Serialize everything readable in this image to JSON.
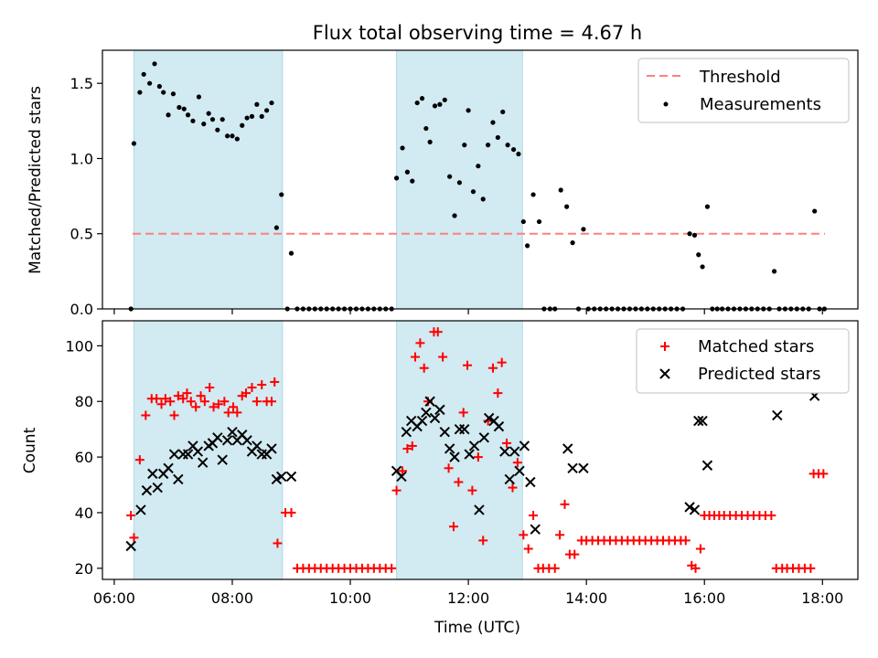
{
  "title": "Flux total observing time = 4.67 h",
  "xlabel": "Time (UTC)",
  "x_ticks": [
    "06:00",
    "08:00",
    "10:00",
    "12:00",
    "14:00",
    "16:00",
    "18:00"
  ],
  "colors": {
    "shade": "#add8e6",
    "threshold": "#ff7f7f",
    "measurement": "#000000",
    "matched": "#ff0000",
    "predicted": "#000000"
  },
  "chart_data": [
    {
      "type": "scatter",
      "ylabel": "Matched/Predicted stars",
      "xlim": [
        "05:48",
        "18:36"
      ],
      "ylim": [
        0,
        1.72
      ],
      "y_ticks": [
        "0.0",
        "0.5",
        "1.0",
        "1.5"
      ],
      "shaded_intervals": [
        [
          "06:20",
          "08:51"
        ],
        [
          "10:47",
          "12:55"
        ]
      ],
      "threshold": 0.5,
      "legend": {
        "placement": "top-right",
        "threshold_label": "Threshold",
        "measurements_label": "Measurements"
      },
      "measurements": [
        [
          "06:17",
          0.0
        ],
        [
          "06:20",
          1.1
        ],
        [
          "06:26",
          1.44
        ],
        [
          "06:30",
          1.56
        ],
        [
          "06:36",
          1.5
        ],
        [
          "06:41",
          1.63
        ],
        [
          "06:46",
          1.48
        ],
        [
          "06:50",
          1.44
        ],
        [
          "06:55",
          1.29
        ],
        [
          "07:00",
          1.43
        ],
        [
          "07:06",
          1.34
        ],
        [
          "07:11",
          1.33
        ],
        [
          "07:15",
          1.29
        ],
        [
          "07:20",
          1.25
        ],
        [
          "07:26",
          1.41
        ],
        [
          "07:31",
          1.23
        ],
        [
          "07:36",
          1.3
        ],
        [
          "07:40",
          1.26
        ],
        [
          "07:45",
          1.19
        ],
        [
          "07:50",
          1.26
        ],
        [
          "07:55",
          1.15
        ],
        [
          "08:00",
          1.15
        ],
        [
          "08:05",
          1.13
        ],
        [
          "08:10",
          1.22
        ],
        [
          "08:15",
          1.27
        ],
        [
          "08:20",
          1.28
        ],
        [
          "08:25",
          1.36
        ],
        [
          "08:30",
          1.28
        ],
        [
          "08:35",
          1.32
        ],
        [
          "08:40",
          1.37
        ],
        [
          "08:45",
          0.54
        ],
        [
          "08:50",
          0.76
        ],
        [
          "08:56",
          0.0
        ],
        [
          "09:00",
          0.37
        ],
        [
          "09:06",
          0.0
        ],
        [
          "09:12",
          0.0
        ],
        [
          "09:18",
          0.0
        ],
        [
          "09:24",
          0.0
        ],
        [
          "09:30",
          0.0
        ],
        [
          "09:36",
          0.0
        ],
        [
          "09:42",
          0.0
        ],
        [
          "09:48",
          0.0
        ],
        [
          "09:54",
          0.0
        ],
        [
          "10:00",
          0.0
        ],
        [
          "10:06",
          0.0
        ],
        [
          "10:12",
          0.0
        ],
        [
          "10:18",
          0.0
        ],
        [
          "10:24",
          0.0
        ],
        [
          "10:30",
          0.0
        ],
        [
          "10:36",
          0.0
        ],
        [
          "10:42",
          0.0
        ],
        [
          "10:47",
          0.87
        ],
        [
          "10:53",
          1.07
        ],
        [
          "10:58",
          0.91
        ],
        [
          "11:03",
          0.85
        ],
        [
          "11:08",
          1.37
        ],
        [
          "11:13",
          1.4
        ],
        [
          "11:17",
          1.2
        ],
        [
          "11:21",
          1.11
        ],
        [
          "11:26",
          1.35
        ],
        [
          "11:31",
          1.36
        ],
        [
          "11:36",
          1.39
        ],
        [
          "11:41",
          0.88
        ],
        [
          "11:46",
          0.62
        ],
        [
          "11:51",
          0.84
        ],
        [
          "11:56",
          1.09
        ],
        [
          "12:00",
          1.32
        ],
        [
          "12:05",
          0.78
        ],
        [
          "12:10",
          0.95
        ],
        [
          "12:15",
          0.73
        ],
        [
          "12:20",
          1.09
        ],
        [
          "12:25",
          1.24
        ],
        [
          "12:30",
          1.14
        ],
        [
          "12:35",
          1.31
        ],
        [
          "12:40",
          1.09
        ],
        [
          "12:46",
          1.06
        ],
        [
          "12:51",
          1.03
        ],
        [
          "12:56",
          0.58
        ],
        [
          "13:00",
          0.42
        ],
        [
          "13:06",
          0.76
        ],
        [
          "13:12",
          0.58
        ],
        [
          "13:17",
          0.0
        ],
        [
          "13:23",
          0.0
        ],
        [
          "13:28",
          0.0
        ],
        [
          "13:34",
          0.79
        ],
        [
          "13:40",
          0.68
        ],
        [
          "13:46",
          0.44
        ],
        [
          "13:52",
          0.0
        ],
        [
          "13:57",
          0.53
        ],
        [
          "14:02",
          0.0
        ],
        [
          "14:08",
          0.0
        ],
        [
          "14:14",
          0.0
        ],
        [
          "14:20",
          0.0
        ],
        [
          "14:26",
          0.0
        ],
        [
          "14:32",
          0.0
        ],
        [
          "14:38",
          0.0
        ],
        [
          "14:44",
          0.0
        ],
        [
          "14:50",
          0.0
        ],
        [
          "14:56",
          0.0
        ],
        [
          "15:02",
          0.0
        ],
        [
          "15:08",
          0.0
        ],
        [
          "15:14",
          0.0
        ],
        [
          "15:20",
          0.0
        ],
        [
          "15:26",
          0.0
        ],
        [
          "15:32",
          0.0
        ],
        [
          "15:38",
          0.0
        ],
        [
          "15:45",
          0.5
        ],
        [
          "15:50",
          0.49
        ],
        [
          "15:54",
          0.36
        ],
        [
          "15:58",
          0.28
        ],
        [
          "16:03",
          0.68
        ],
        [
          "16:08",
          0.0
        ],
        [
          "16:13",
          0.0
        ],
        [
          "16:18",
          0.0
        ],
        [
          "16:24",
          0.0
        ],
        [
          "16:30",
          0.0
        ],
        [
          "16:36",
          0.0
        ],
        [
          "16:42",
          0.0
        ],
        [
          "16:48",
          0.0
        ],
        [
          "16:54",
          0.0
        ],
        [
          "17:00",
          0.0
        ],
        [
          "17:06",
          0.0
        ],
        [
          "17:11",
          0.25
        ],
        [
          "17:16",
          0.0
        ],
        [
          "17:22",
          0.0
        ],
        [
          "17:28",
          0.0
        ],
        [
          "17:34",
          0.0
        ],
        [
          "17:40",
          0.0
        ],
        [
          "17:46",
          0.0
        ],
        [
          "17:52",
          0.65
        ],
        [
          "17:57",
          0.0
        ],
        [
          "18:02",
          0.0
        ]
      ]
    },
    {
      "type": "scatter",
      "ylabel": "Count",
      "xlim": [
        "05:48",
        "18:36"
      ],
      "ylim": [
        16,
        109
      ],
      "y_ticks": [
        "20",
        "40",
        "60",
        "80",
        "100"
      ],
      "shaded_intervals": [
        [
          "06:20",
          "08:51"
        ],
        [
          "10:47",
          "12:55"
        ]
      ],
      "legend": {
        "placement": "top-right",
        "matched_label": "Matched stars",
        "predicted_label": "Predicted stars"
      },
      "matched": [
        [
          "06:17",
          39
        ],
        [
          "06:20",
          31
        ],
        [
          "06:26",
          59
        ],
        [
          "06:32",
          75
        ],
        [
          "06:38",
          81
        ],
        [
          "06:43",
          81
        ],
        [
          "06:48",
          79
        ],
        [
          "06:52",
          81
        ],
        [
          "06:57",
          80
        ],
        [
          "07:01",
          75
        ],
        [
          "07:05",
          82
        ],
        [
          "07:10",
          81
        ],
        [
          "07:14",
          83
        ],
        [
          "07:18",
          80
        ],
        [
          "07:23",
          78
        ],
        [
          "07:28",
          82
        ],
        [
          "07:32",
          80
        ],
        [
          "07:37",
          85
        ],
        [
          "07:41",
          78
        ],
        [
          "07:46",
          79
        ],
        [
          "07:52",
          80
        ],
        [
          "07:56",
          76
        ],
        [
          "08:01",
          78
        ],
        [
          "08:05",
          76
        ],
        [
          "08:10",
          82
        ],
        [
          "08:14",
          83
        ],
        [
          "08:20",
          85
        ],
        [
          "08:25",
          80
        ],
        [
          "08:30",
          86
        ],
        [
          "08:35",
          80
        ],
        [
          "08:40",
          80
        ],
        [
          "08:43",
          87
        ],
        [
          "08:46",
          29
        ],
        [
          "08:54",
          40
        ],
        [
          "09:00",
          40
        ],
        [
          "09:06",
          20
        ],
        [
          "09:12",
          20
        ],
        [
          "09:18",
          20
        ],
        [
          "09:24",
          20
        ],
        [
          "09:30",
          20
        ],
        [
          "09:36",
          20
        ],
        [
          "09:42",
          20
        ],
        [
          "09:48",
          20
        ],
        [
          "09:54",
          20
        ],
        [
          "10:00",
          20
        ],
        [
          "10:06",
          20
        ],
        [
          "10:12",
          20
        ],
        [
          "10:18",
          20
        ],
        [
          "10:24",
          20
        ],
        [
          "10:30",
          20
        ],
        [
          "10:36",
          20
        ],
        [
          "10:42",
          20
        ],
        [
          "10:47",
          48
        ],
        [
          "10:53",
          55
        ],
        [
          "10:58",
          63
        ],
        [
          "11:03",
          64
        ],
        [
          "11:06",
          96
        ],
        [
          "11:11",
          101
        ],
        [
          "11:15",
          92
        ],
        [
          "11:19",
          80
        ],
        [
          "11:25",
          105
        ],
        [
          "11:29",
          105
        ],
        [
          "11:34",
          96
        ],
        [
          "11:40",
          56
        ],
        [
          "11:45",
          35
        ],
        [
          "11:50",
          51
        ],
        [
          "11:55",
          76
        ],
        [
          "11:59",
          93
        ],
        [
          "12:04",
          48
        ],
        [
          "12:10",
          60
        ],
        [
          "12:15",
          30
        ],
        [
          "12:20",
          73
        ],
        [
          "12:25",
          92
        ],
        [
          "12:30",
          83
        ],
        [
          "12:34",
          94
        ],
        [
          "12:39",
          65
        ],
        [
          "12:45",
          49
        ],
        [
          "12:50",
          58
        ],
        [
          "12:56",
          32
        ],
        [
          "13:01",
          27
        ],
        [
          "13:06",
          39
        ],
        [
          "13:11",
          20
        ],
        [
          "13:16",
          20
        ],
        [
          "13:22",
          20
        ],
        [
          "13:28",
          20
        ],
        [
          "13:33",
          32
        ],
        [
          "13:38",
          43
        ],
        [
          "13:43",
          25
        ],
        [
          "13:48",
          25
        ],
        [
          "13:55",
          30
        ],
        [
          "14:00",
          30
        ],
        [
          "14:06",
          30
        ],
        [
          "14:12",
          30
        ],
        [
          "14:18",
          30
        ],
        [
          "14:24",
          30
        ],
        [
          "14:30",
          30
        ],
        [
          "14:36",
          30
        ],
        [
          "14:42",
          30
        ],
        [
          "14:48",
          30
        ],
        [
          "14:54",
          30
        ],
        [
          "15:00",
          30
        ],
        [
          "15:06",
          30
        ],
        [
          "15:12",
          30
        ],
        [
          "15:18",
          30
        ],
        [
          "15:24",
          30
        ],
        [
          "15:30",
          30
        ],
        [
          "15:36",
          30
        ],
        [
          "15:41",
          30
        ],
        [
          "15:47",
          21
        ],
        [
          "15:51",
          20
        ],
        [
          "15:56",
          27
        ],
        [
          "16:00",
          39
        ],
        [
          "16:05",
          39
        ],
        [
          "16:10",
          39
        ],
        [
          "16:15",
          39
        ],
        [
          "16:20",
          39
        ],
        [
          "16:26",
          39
        ],
        [
          "16:32",
          39
        ],
        [
          "16:38",
          39
        ],
        [
          "16:44",
          39
        ],
        [
          "16:50",
          39
        ],
        [
          "16:56",
          39
        ],
        [
          "17:02",
          39
        ],
        [
          "17:08",
          39
        ],
        [
          "17:13",
          20
        ],
        [
          "17:19",
          20
        ],
        [
          "17:24",
          20
        ],
        [
          "17:30",
          20
        ],
        [
          "17:36",
          20
        ],
        [
          "17:42",
          20
        ],
        [
          "17:48",
          20
        ],
        [
          "17:51",
          54
        ],
        [
          "17:56",
          54
        ],
        [
          "18:01",
          54
        ]
      ],
      "predicted": [
        [
          "06:17",
          28
        ],
        [
          "06:27",
          41
        ],
        [
          "06:33",
          48
        ],
        [
          "06:39",
          54
        ],
        [
          "06:44",
          49
        ],
        [
          "06:50",
          54
        ],
        [
          "06:55",
          56
        ],
        [
          "07:01",
          61
        ],
        [
          "07:05",
          52
        ],
        [
          "07:10",
          61
        ],
        [
          "07:15",
          61
        ],
        [
          "07:20",
          64
        ],
        [
          "07:25",
          62
        ],
        [
          "07:30",
          58
        ],
        [
          "07:36",
          64
        ],
        [
          "07:40",
          65
        ],
        [
          "07:45",
          67
        ],
        [
          "07:50",
          59
        ],
        [
          "07:55",
          66
        ],
        [
          "08:00",
          69
        ],
        [
          "08:05",
          66
        ],
        [
          "08:10",
          68
        ],
        [
          "08:15",
          66
        ],
        [
          "08:20",
          62
        ],
        [
          "08:25",
          64
        ],
        [
          "08:30",
          61
        ],
        [
          "08:35",
          61
        ],
        [
          "08:40",
          63
        ],
        [
          "08:45",
          52
        ],
        [
          "08:50",
          53
        ],
        [
          "09:00",
          53
        ],
        [
          "10:47",
          55
        ],
        [
          "10:52",
          53
        ],
        [
          "10:57",
          69
        ],
        [
          "11:02",
          73
        ],
        [
          "11:08",
          71
        ],
        [
          "11:13",
          73
        ],
        [
          "11:17",
          76
        ],
        [
          "11:21",
          80
        ],
        [
          "11:26",
          74
        ],
        [
          "11:31",
          77
        ],
        [
          "11:36",
          69
        ],
        [
          "11:41",
          63
        ],
        [
          "11:46",
          60
        ],
        [
          "11:51",
          70
        ],
        [
          "11:56",
          70
        ],
        [
          "12:01",
          61
        ],
        [
          "12:06",
          64
        ],
        [
          "12:11",
          41
        ],
        [
          "12:16",
          67
        ],
        [
          "12:21",
          74
        ],
        [
          "12:26",
          73
        ],
        [
          "12:31",
          71
        ],
        [
          "12:37",
          62
        ],
        [
          "12:42",
          52
        ],
        [
          "12:47",
          62
        ],
        [
          "12:52",
          55
        ],
        [
          "12:57",
          64
        ],
        [
          "13:03",
          51
        ],
        [
          "13:08",
          34
        ],
        [
          "13:41",
          63
        ],
        [
          "13:46",
          56
        ],
        [
          "13:57",
          56
        ],
        [
          "15:45",
          42
        ],
        [
          "15:50",
          41
        ],
        [
          "15:54",
          73
        ],
        [
          "15:58",
          73
        ],
        [
          "16:03",
          57
        ],
        [
          "17:14",
          75
        ],
        [
          "17:52",
          82
        ]
      ]
    }
  ]
}
